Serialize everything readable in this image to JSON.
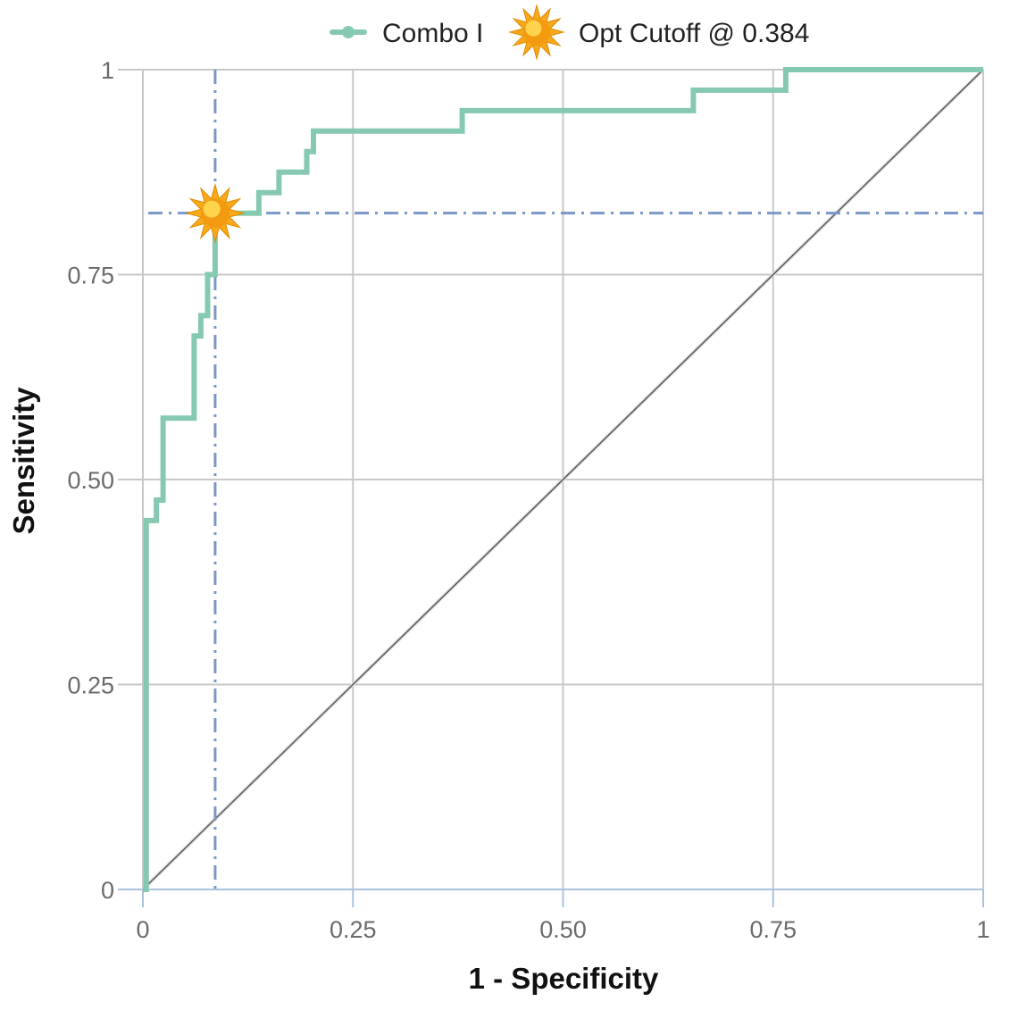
{
  "chart_data": {
    "type": "line",
    "title": "",
    "xlabel": "1 - Specificity",
    "ylabel": "Sensitivity",
    "xlim": [
      0,
      1
    ],
    "ylim": [
      0,
      1
    ],
    "x_ticks": [
      0,
      0.25,
      0.5,
      0.75,
      1
    ],
    "x_tick_labels": [
      "0",
      "0.25",
      "0.50",
      "0.75",
      "1"
    ],
    "y_ticks": [
      0,
      0.25,
      0.5,
      0.75,
      1
    ],
    "y_tick_labels": [
      "0",
      "0.25",
      "0.50",
      "0.75",
      "1"
    ],
    "grid": true,
    "legend": {
      "placement": "top",
      "entries": [
        {
          "label": "Combo I",
          "marker": "line-dot",
          "color": "#86c9b1"
        },
        {
          "label": "Opt Cutoff @ 0.384",
          "marker": "sun-icon",
          "color": "#f4a20c"
        }
      ]
    },
    "series": [
      {
        "name": "Combo I",
        "color": "#86c9b1",
        "x": [
          0,
          0.004,
          0.004,
          0.016,
          0.016,
          0.024,
          0.024,
          0.061,
          0.061,
          0.069,
          0.069,
          0.077,
          0.077,
          0.086,
          0.086,
          0.138,
          0.138,
          0.162,
          0.162,
          0.195,
          0.195,
          0.203,
          0.203,
          0.38,
          0.38,
          0.655,
          0.655,
          0.765,
          0.765,
          1
        ],
        "y": [
          0,
          0,
          0.45,
          0.45,
          0.475,
          0.475,
          0.575,
          0.575,
          0.675,
          0.675,
          0.7,
          0.7,
          0.75,
          0.75,
          0.825,
          0.825,
          0.85,
          0.85,
          0.875,
          0.875,
          0.9,
          0.9,
          0.925,
          0.925,
          0.95,
          0.95,
          0.975,
          0.975,
          1,
          1
        ]
      }
    ],
    "reference_line": {
      "x": [
        0,
        1
      ],
      "y": [
        0,
        1
      ],
      "color": "#555555"
    },
    "optimal_cutoff": {
      "label": "Opt Cutoff @ 0.384",
      "x": 0.086,
      "y": 0.825,
      "guide_color": "#7b96c8"
    }
  }
}
